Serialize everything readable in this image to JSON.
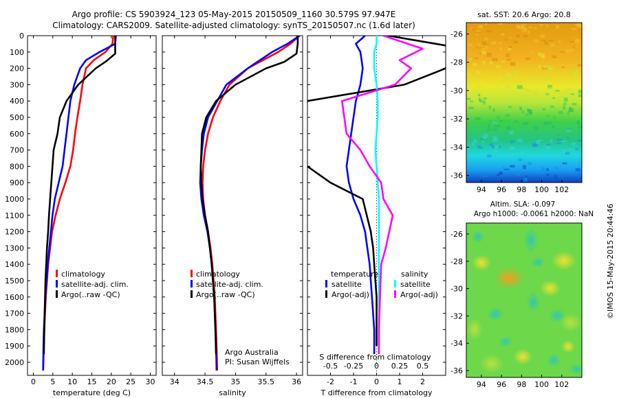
{
  "header": {
    "line1": "Argo profile: CS 5903924_123 05-May-2015 20150509_1160 30.579S 97.947E",
    "line2": "Climatology: CARS2009. Satellite-adjusted climatology: synTS_20150507.nc (1.6d later)"
  },
  "side_label": "©IMOS 15-May-2015 20:44:46",
  "colors": {
    "climatology": "#ff0000",
    "satellite": "#0000ff",
    "argo": "#000000",
    "argo_salinity_diff": "#ff00ff",
    "satellite_salinity_diff": "#00ffff"
  },
  "chart_data": [
    {
      "type": "line",
      "xlabel": "temperature (deg C)",
      "xlim": [
        -1.5,
        31.5
      ],
      "ylim": [
        0,
        2080
      ],
      "xticks": [
        "0",
        "5",
        "10",
        "15",
        "20",
        "25",
        "30"
      ],
      "yticks": [
        "0",
        "100",
        "200",
        "300",
        "400",
        "500",
        "600",
        "700",
        "800",
        "900",
        "1000",
        "1100",
        "1200",
        "1300",
        "1400",
        "1500",
        "1600",
        "1700",
        "1800",
        "1900",
        "2000"
      ],
      "legend": [
        "climatology",
        "satellite-adj. clim.",
        "Argo(..raw -QC)"
      ],
      "legend_placement": "lower-middle",
      "series": [
        {
          "name": "climatology",
          "color": "#ff0000",
          "x": [
            20.5,
            20.3,
            18.5,
            15.5,
            13.5,
            12.6,
            12.0,
            11.3,
            10.7,
            10.2,
            9.5,
            8.2,
            6.8,
            5.7,
            4.8,
            4.3,
            3.8,
            3.5,
            3.2,
            3.0,
            2.8,
            2.7,
            2.5
          ],
          "y": [
            0,
            50,
            100,
            150,
            200,
            300,
            400,
            500,
            600,
            700,
            800,
            900,
            1000,
            1100,
            1200,
            1300,
            1400,
            1500,
            1600,
            1700,
            1800,
            1900,
            2050
          ]
        },
        {
          "name": "satellite-adj. clim.",
          "color": "#0000ff",
          "x": [
            21.2,
            21.0,
            17.0,
            13.5,
            12.0,
            10.5,
            9.5,
            9.0,
            8.5,
            8.0,
            7.5,
            6.5,
            5.5,
            4.9,
            4.5,
            4.1,
            3.7,
            3.4,
            3.1,
            2.9,
            2.7,
            2.6,
            2.5
          ],
          "y": [
            0,
            50,
            100,
            150,
            200,
            300,
            400,
            500,
            600,
            700,
            800,
            900,
            1000,
            1100,
            1200,
            1300,
            1400,
            1500,
            1600,
            1700,
            1800,
            1900,
            2050
          ]
        },
        {
          "name": "Argo(..raw -QC)",
          "color": "#000000",
          "x": [
            21.0,
            21.0,
            21.0,
            18.5,
            16.0,
            11.5,
            8.5,
            6.8,
            6.2,
            5.2,
            4.9,
            4.6,
            4.3,
            4.0,
            3.8,
            3.5,
            3.3,
            3.1,
            3.0,
            2.9,
            2.8,
            2.7
          ],
          "y": [
            0,
            50,
            110,
            160,
            200,
            300,
            400,
            500,
            600,
            700,
            800,
            900,
            1000,
            1100,
            1200,
            1300,
            1400,
            1500,
            1600,
            1700,
            1800,
            1950
          ]
        }
      ]
    },
    {
      "type": "line",
      "xlabel": "salinity",
      "xlim": [
        33.8,
        36.1
      ],
      "ylim": [
        0,
        2080
      ],
      "xticks": [
        "34",
        "34.5",
        "35",
        "35.5",
        "36"
      ],
      "legend": [
        "climatology",
        "satellite-adj. clim.",
        "Argo(..raw -QC)"
      ],
      "legend_placement": "lower-middle",
      "annotation": [
        "Argo Australia",
        "PI: Susan Wijffels"
      ],
      "series": [
        {
          "name": "climatology",
          "color": "#ff0000",
          "x": [
            36.05,
            35.9,
            35.7,
            35.45,
            35.2,
            34.9,
            34.75,
            34.63,
            34.55,
            34.5,
            34.47,
            34.46,
            34.47,
            34.5,
            34.55,
            34.59,
            34.62,
            34.64,
            34.66,
            34.67,
            34.68,
            34.69,
            34.7
          ],
          "y": [
            0,
            50,
            100,
            150,
            200,
            300,
            400,
            500,
            600,
            700,
            800,
            900,
            1000,
            1100,
            1200,
            1300,
            1400,
            1500,
            1600,
            1700,
            1800,
            1900,
            2050
          ]
        },
        {
          "name": "satellite-adj. clim.",
          "color": "#0000ff",
          "x": [
            36.05,
            35.85,
            35.6,
            35.4,
            35.2,
            34.85,
            34.7,
            34.55,
            34.48,
            34.45,
            34.43,
            34.42,
            34.44,
            34.48,
            34.54,
            34.58,
            34.61,
            34.63,
            34.65,
            34.66,
            34.67,
            34.68,
            34.69
          ],
          "y": [
            0,
            50,
            100,
            150,
            200,
            300,
            400,
            500,
            600,
            700,
            800,
            900,
            1000,
            1100,
            1200,
            1300,
            1400,
            1500,
            1600,
            1700,
            1800,
            1900,
            2050
          ]
        },
        {
          "name": "Argo(..raw -QC)",
          "color": "#000000",
          "x": [
            36.02,
            36.02,
            36.0,
            35.8,
            35.5,
            35.0,
            34.68,
            34.52,
            34.45,
            34.44,
            34.43,
            34.44,
            34.46,
            34.5,
            34.55,
            34.58,
            34.61,
            34.63,
            34.65,
            34.66,
            34.67,
            34.68
          ],
          "y": [
            0,
            50,
            110,
            160,
            200,
            300,
            400,
            500,
            600,
            700,
            800,
            900,
            1000,
            1100,
            1200,
            1300,
            1400,
            1500,
            1600,
            1700,
            1800,
            1950
          ]
        }
      ]
    },
    {
      "type": "line",
      "xlabel": "T difference from climatology",
      "xlabel_top": "S difference from climatology",
      "xlim": [
        -3,
        3
      ],
      "ylim": [
        0,
        2080
      ],
      "xticks": [
        "-2",
        "-1",
        "0",
        "1",
        "2"
      ],
      "xticks_top": [
        "-0.5",
        "-0.25",
        "0",
        "0.25",
        "0.5"
      ],
      "legend_groups": {
        "temperature": "temperature",
        "salinity": "salinity"
      },
      "legend": [
        "satellite",
        "Argo(-adj)",
        "satellite",
        "Argo(-adj)"
      ],
      "legend_placement": "lower-middle",
      "zero_line": "dotted",
      "series": [
        {
          "name": "satellite",
          "group": "temperature",
          "color": "#0000ff",
          "x": [
            -0.5,
            -0.9,
            -0.7,
            -0.6,
            -0.7,
            -0.9,
            -1.0,
            -1.1,
            -1.2,
            -1.3,
            -1.2,
            -1.0,
            -0.7,
            -0.5,
            -0.4,
            -0.3,
            -0.25,
            -0.2,
            -0.15,
            -0.1,
            -0.1
          ],
          "y": [
            0,
            50,
            100,
            200,
            300,
            400,
            500,
            600,
            700,
            800,
            900,
            1000,
            1100,
            1200,
            1300,
            1400,
            1500,
            1600,
            1700,
            1800,
            1950
          ]
        },
        {
          "name": "Argo(-adj)",
          "group": "temperature",
          "color": "#000000",
          "x": [
            0.5,
            3.0,
            3.2,
            3.0,
            1.2,
            -3.0,
            -3.2,
            -3.2,
            -3.5,
            -3.0,
            -2.0,
            -0.6,
            -0.25,
            -0.15,
            -0.1,
            -0.05,
            0.0,
            0.0,
            0.0
          ],
          "y": [
            0,
            60,
            100,
            200,
            300,
            400,
            500,
            600,
            700,
            800,
            900,
            1000,
            1200,
            1300,
            1400,
            1500,
            1600,
            1700,
            1900
          ]
        },
        {
          "name": "satellite",
          "group": "salinity",
          "color": "#00ffff",
          "x": [
            0.0,
            0.0,
            -0.1,
            -0.1,
            0.0,
            0.05,
            0.05,
            0.0,
            -0.05,
            0.0,
            0.05,
            0.1,
            0.1,
            0.1,
            0.1,
            0.1,
            0.1,
            0.1,
            0.1,
            0.1,
            0.1
          ],
          "y": [
            0,
            50,
            100,
            200,
            300,
            400,
            500,
            600,
            700,
            800,
            900,
            1000,
            1100,
            1200,
            1300,
            1400,
            1500,
            1600,
            1700,
            1800,
            1950
          ]
        },
        {
          "name": "Argo(-adj)",
          "group": "salinity",
          "color": "#ff00ff",
          "x": [
            0.3,
            2.0,
            1.0,
            1.5,
            0.8,
            -1.5,
            -1.3,
            -0.7,
            -0.3,
            0.2,
            0.3,
            0.7,
            0.4,
            0.2,
            0.15,
            0.1,
            0.1
          ],
          "y": [
            0,
            80,
            150,
            200,
            300,
            400,
            600,
            700,
            800,
            900,
            1000,
            1100,
            1300,
            1400,
            1600,
            1800,
            1950
          ]
        }
      ]
    },
    {
      "type": "heatmap",
      "title": "sat. SST: 20.6 Argo: 20.8",
      "xticks": [
        "94",
        "96",
        "98",
        "100",
        "102"
      ],
      "yticks": [
        "-26",
        "-28",
        "-30",
        "-32",
        "-34",
        "-36"
      ],
      "xlim": [
        92.5,
        104
      ],
      "ylim": [
        -36.5,
        -25.2
      ],
      "colormap": "jet",
      "note": "warm (orange) in north, cooling to cyan/blue in south"
    },
    {
      "type": "heatmap",
      "title": "Altim. SLA: -0.097",
      "subtitle": "Argo h1000: -0.0061 h2000: NaN",
      "xticks": [
        "94",
        "96",
        "98",
        "100",
        "102"
      ],
      "yticks": [
        "-26",
        "-28",
        "-30",
        "-32",
        "-34",
        "-36"
      ],
      "xlim": [
        92.5,
        104
      ],
      "ylim": [
        -36.5,
        -25.2
      ],
      "colormap": "jet",
      "note": "mostly green field with cyan and yellow/orange eddies"
    }
  ]
}
